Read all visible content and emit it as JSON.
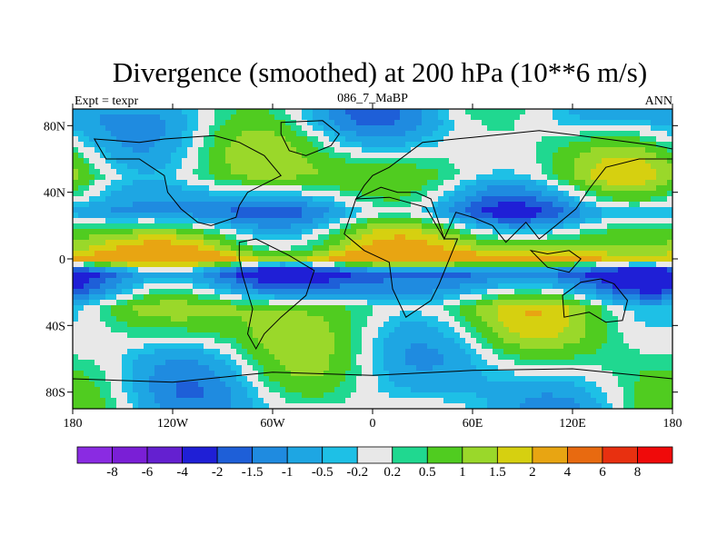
{
  "chart_data": {
    "type": "heatmap",
    "title": "Divergence (smoothed) at 200 hPa (10**6 m/s)",
    "subtitle_left": "Expt = texpr",
    "subtitle_center": "086_7_MaBP",
    "subtitle_right": "ANN",
    "x_ticks": [
      {
        "value": -180,
        "label": "180"
      },
      {
        "value": -120,
        "label": "120W"
      },
      {
        "value": -60,
        "label": "60W"
      },
      {
        "value": 0,
        "label": "0"
      },
      {
        "value": 60,
        "label": "60E"
      },
      {
        "value": 120,
        "label": "120E"
      },
      {
        "value": 180,
        "label": "180"
      }
    ],
    "y_ticks": [
      {
        "value": 80,
        "label": "80N"
      },
      {
        "value": 40,
        "label": "40N"
      },
      {
        "value": 0,
        "label": "0"
      },
      {
        "value": -40,
        "label": "40S"
      },
      {
        "value": -80,
        "label": "80S"
      }
    ],
    "xlim": [
      -180,
      180
    ],
    "ylim": [
      -90,
      90
    ],
    "colorbar": {
      "colors": [
        "#8a2be2",
        "#7a1fd6",
        "#6420d0",
        "#1f1fd6",
        "#1e5fd8",
        "#1f8be0",
        "#1ea6e3",
        "#1ec0e6",
        "#e8e8e8",
        "#20d890",
        "#50cc20",
        "#9ad82a",
        "#d6d010",
        "#e8a512",
        "#e86a10",
        "#e83010",
        "#f00a0a"
      ],
      "labels": [
        "-8",
        "-6",
        "-4",
        "-2",
        "-1.5",
        "-1",
        "-0.5",
        "-0.2",
        "0.2",
        "0.5",
        "1",
        "1.5",
        "2",
        "4",
        "6",
        "8"
      ]
    },
    "field_bands": [
      {
        "lat": 83,
        "level": -0.5
      },
      {
        "lat": 60,
        "level": 0.5
      },
      {
        "lat": 50,
        "level": 0.7
      },
      {
        "lat": 38,
        "level": -0.3
      },
      {
        "lat": 28,
        "level": -1.2
      },
      {
        "lat": 16,
        "level": 0.5
      },
      {
        "lat": 6,
        "level": 1.5
      },
      {
        "lat": 0,
        "level": 2.5
      },
      {
        "lat": -8,
        "level": -2.0
      },
      {
        "lat": -18,
        "level": -1.0
      },
      {
        "lat": -30,
        "level": 0.8
      },
      {
        "lat": -45,
        "level": 0.5
      },
      {
        "lat": -60,
        "level": 0.0
      },
      {
        "lat": -78,
        "level": -0.3
      }
    ]
  }
}
